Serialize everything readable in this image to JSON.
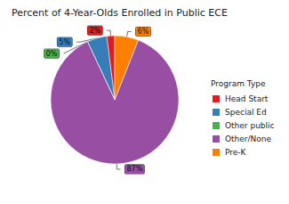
{
  "chart_data": {
    "type": "pie",
    "title": "Percent of 4-Year-Olds Enrolled in Public ECE",
    "legend_title": "Program Type",
    "categories": [
      "Head Start",
      "Special Ed",
      "Other public",
      "Other/None",
      "Pre-K"
    ],
    "values": [
      2,
      5,
      0,
      87,
      6
    ],
    "value_labels": [
      "2%",
      "5%",
      "0%",
      "87%",
      "6%"
    ],
    "colors": [
      "#e41a1c",
      "#377eb8",
      "#4daf4a",
      "#984ea3",
      "#ff7f00"
    ],
    "data_labels": true,
    "legend": "right"
  }
}
